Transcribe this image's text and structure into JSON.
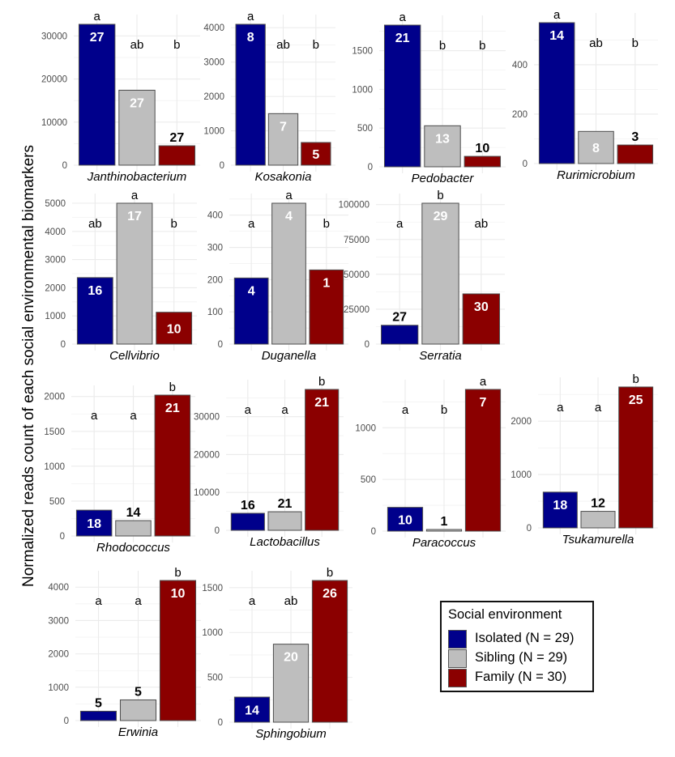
{
  "chart_data": {
    "type": "bar",
    "ylabel": "Normalized reads count of each social environmental biomarkers",
    "legend": {
      "title": "Social environment",
      "position": "bottom-right",
      "entries": [
        {
          "label": "Isolated (N = 29)",
          "color": "#00008B"
        },
        {
          "label": "Sibling (N = 29)",
          "color": "#BEBEBE"
        },
        {
          "label": "Family (N = 30)",
          "color": "#8B0000"
        }
      ]
    },
    "groups": [
      "Isolated",
      "Sibling",
      "Family"
    ],
    "colors": {
      "Isolated": "#00008B",
      "Sibling": "#BEBEBE",
      "Family": "#8B0000",
      "grid": "#EBEBEB",
      "bar_border": "#4D4D4D"
    },
    "panels": [
      {
        "title": "Janthinobacterium",
        "values": [
          32700,
          17400,
          4500
        ],
        "n": [
          "27",
          "27",
          "27"
        ],
        "sig": [
          "a",
          "ab",
          "b"
        ],
        "yticks": [
          0,
          10000,
          20000,
          30000
        ],
        "ylim": [
          0,
          32700
        ]
      },
      {
        "title": "Kosakonia",
        "values": [
          4100,
          1500,
          660
        ],
        "n": [
          "8",
          "7",
          "5"
        ],
        "sig": [
          "a",
          "ab",
          "b"
        ],
        "yticks": [
          0,
          1000,
          2000,
          3000,
          4000
        ],
        "ylim": [
          0,
          4100
        ]
      },
      {
        "title": "Pedobacter",
        "values": [
          1830,
          530,
          135
        ],
        "n": [
          "21",
          "13",
          "10"
        ],
        "sig": [
          "a",
          "b",
          "b"
        ],
        "yticks": [
          0,
          500,
          1000,
          1500
        ],
        "ylim": [
          0,
          1830
        ]
      },
      {
        "title": "Rurimicrobium",
        "values": [
          570,
          130,
          75
        ],
        "n": [
          "14",
          "8",
          "3"
        ],
        "sig": [
          "a",
          "ab",
          "b"
        ],
        "yticks": [
          0,
          200,
          400
        ],
        "ylim": [
          0,
          570
        ]
      },
      {
        "title": "Cellvibrio",
        "values": [
          2360,
          5000,
          1130
        ],
        "n": [
          "16",
          "17",
          "10"
        ],
        "sig": [
          "ab",
          "a",
          "b"
        ],
        "yticks": [
          0,
          1000,
          2000,
          3000,
          4000,
          5000
        ],
        "ylim": [
          0,
          5000
        ]
      },
      {
        "title": "Duganella",
        "values": [
          205,
          437,
          230
        ],
        "n": [
          "4",
          "4",
          "1"
        ],
        "sig": [
          "a",
          "a",
          "b"
        ],
        "yticks": [
          0,
          100,
          200,
          300,
          400
        ],
        "ylim": [
          0,
          437
        ]
      },
      {
        "title": "Serratia",
        "values": [
          13500,
          101000,
          36000
        ],
        "n": [
          "27",
          "29",
          "30"
        ],
        "sig": [
          "a",
          "b",
          "ab"
        ],
        "yticks": [
          0,
          25000,
          50000,
          75000,
          100000
        ],
        "ylim": [
          0,
          101000
        ]
      },
      {
        "title": "Rhodococcus",
        "values": [
          370,
          220,
          2020
        ],
        "n": [
          "18",
          "14",
          "21"
        ],
        "sig": [
          "a",
          "a",
          "b"
        ],
        "yticks": [
          0,
          500,
          1000,
          1500,
          2000
        ],
        "ylim": [
          0,
          2020
        ]
      },
      {
        "title": "Lactobacillus",
        "values": [
          4500,
          4900,
          37200
        ],
        "n": [
          "16",
          "21",
          "21"
        ],
        "sig": [
          "a",
          "a",
          "b"
        ],
        "yticks": [
          0,
          10000,
          20000,
          30000
        ],
        "ylim": [
          0,
          37200
        ]
      },
      {
        "title": "Paracoccus",
        "values": [
          230,
          12,
          1370
        ],
        "n": [
          "10",
          "1",
          "7"
        ],
        "sig": [
          "a",
          "b",
          "a"
        ],
        "yticks": [
          0,
          500,
          1000
        ],
        "ylim": [
          0,
          1370
        ]
      },
      {
        "title": "Tsukamurella",
        "values": [
          670,
          310,
          2640
        ],
        "n": [
          "18",
          "12",
          "25"
        ],
        "sig": [
          "a",
          "a",
          "b"
        ],
        "yticks": [
          0,
          1000,
          2000
        ],
        "ylim": [
          0,
          2640
        ]
      },
      {
        "title": "Erwinia",
        "values": [
          280,
          620,
          4200
        ],
        "n": [
          "5",
          "5",
          "10"
        ],
        "sig": [
          "a",
          "a",
          "b"
        ],
        "yticks": [
          0,
          1000,
          2000,
          3000,
          4000
        ],
        "ylim": [
          0,
          4200
        ]
      },
      {
        "title": "Sphingobium",
        "values": [
          280,
          870,
          1580
        ],
        "n": [
          "14",
          "20",
          "26"
        ],
        "sig": [
          "a",
          "ab",
          "b"
        ],
        "yticks": [
          0,
          500,
          1000,
          1500
        ],
        "ylim": [
          0,
          1580
        ]
      }
    ]
  }
}
